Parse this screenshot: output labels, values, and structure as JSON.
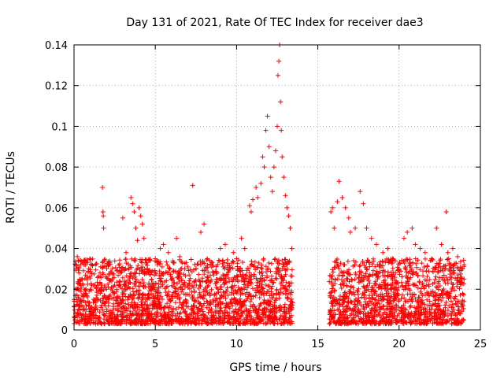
{
  "chart_data": {
    "type": "scatter",
    "title": "Day 131 of 2021, Rate Of TEC Index for receiver dae3",
    "xlabel": "GPS time / hours",
    "ylabel": "ROTI / TECUs",
    "xlim": [
      0,
      25
    ],
    "ylim": [
      0,
      0.14
    ],
    "x_ticks": [
      0,
      5,
      10,
      15,
      20,
      25
    ],
    "y_ticks": [
      0,
      0.02,
      0.04,
      0.06,
      0.08,
      0.1,
      0.12,
      0.14
    ],
    "x_tick_labels": [
      "0",
      "5",
      "10",
      "15",
      "20",
      "25"
    ],
    "y_tick_labels": [
      "0",
      "0.02",
      "0.04",
      "0.06",
      "0.08",
      "0.1",
      "0.12",
      "0.14"
    ],
    "grid": true,
    "marker": "plus",
    "color": "#ff0000",
    "series": [
      {
        "values": [
          [
            0.0,
            0.015
          ],
          [
            0.1,
            0.02
          ],
          [
            0.15,
            0.032
          ],
          [
            0.2,
            0.036
          ],
          [
            0.3,
            0.012
          ],
          [
            0.5,
            0.025
          ],
          [
            0.7,
            0.018
          ],
          [
            0.9,
            0.03
          ],
          [
            1.0,
            0.01
          ],
          [
            1.2,
            0.022
          ],
          [
            1.5,
            0.015
          ],
          [
            1.6,
            0.028
          ],
          [
            1.75,
            0.07
          ],
          [
            1.78,
            0.058
          ],
          [
            1.8,
            0.056
          ],
          [
            1.82,
            0.05
          ],
          [
            2.0,
            0.02
          ],
          [
            2.2,
            0.033
          ],
          [
            2.5,
            0.018
          ],
          [
            2.8,
            0.024
          ],
          [
            3.0,
            0.055
          ],
          [
            3.2,
            0.038
          ],
          [
            3.5,
            0.065
          ],
          [
            3.6,
            0.062
          ],
          [
            3.7,
            0.058
          ],
          [
            3.8,
            0.05
          ],
          [
            3.9,
            0.044
          ],
          [
            4.0,
            0.06
          ],
          [
            4.1,
            0.056
          ],
          [
            4.2,
            0.052
          ],
          [
            4.3,
            0.045
          ],
          [
            4.5,
            0.03
          ],
          [
            4.8,
            0.02
          ],
          [
            5.0,
            0.035
          ],
          [
            5.3,
            0.04
          ],
          [
            5.5,
            0.042
          ],
          [
            5.8,
            0.038
          ],
          [
            6.0,
            0.025
          ],
          [
            6.3,
            0.045
          ],
          [
            6.5,
            0.036
          ],
          [
            6.8,
            0.03
          ],
          [
            7.0,
            0.022
          ],
          [
            7.3,
            0.071
          ],
          [
            7.5,
            0.03
          ],
          [
            7.8,
            0.048
          ],
          [
            8.0,
            0.052
          ],
          [
            8.2,
            0.035
          ],
          [
            8.5,
            0.033
          ],
          [
            8.8,
            0.028
          ],
          [
            9.0,
            0.04
          ],
          [
            9.3,
            0.042
          ],
          [
            9.5,
            0.03
          ],
          [
            9.8,
            0.038
          ],
          [
            10.0,
            0.035
          ],
          [
            10.3,
            0.045
          ],
          [
            10.5,
            0.04
          ],
          [
            10.8,
            0.061
          ],
          [
            10.9,
            0.058
          ],
          [
            11.0,
            0.064
          ],
          [
            11.2,
            0.07
          ],
          [
            11.3,
            0.065
          ],
          [
            11.5,
            0.072
          ],
          [
            11.6,
            0.085
          ],
          [
            11.7,
            0.08
          ],
          [
            11.8,
            0.098
          ],
          [
            11.9,
            0.105
          ],
          [
            12.0,
            0.09
          ],
          [
            12.1,
            0.075
          ],
          [
            12.2,
            0.068
          ],
          [
            12.3,
            0.08
          ],
          [
            12.4,
            0.088
          ],
          [
            12.5,
            0.1
          ],
          [
            12.55,
            0.125
          ],
          [
            12.6,
            0.132
          ],
          [
            12.65,
            0.14
          ],
          [
            12.7,
            0.112
          ],
          [
            12.75,
            0.098
          ],
          [
            12.8,
            0.085
          ],
          [
            12.9,
            0.075
          ],
          [
            13.0,
            0.066
          ],
          [
            13.1,
            0.06
          ],
          [
            13.2,
            0.056
          ],
          [
            13.3,
            0.05
          ],
          [
            13.4,
            0.04
          ],
          [
            15.8,
            0.058
          ],
          [
            15.9,
            0.06
          ],
          [
            16.0,
            0.05
          ],
          [
            16.2,
            0.063
          ],
          [
            16.3,
            0.073
          ],
          [
            16.5,
            0.065
          ],
          [
            16.7,
            0.06
          ],
          [
            16.9,
            0.055
          ],
          [
            17.0,
            0.048
          ],
          [
            17.3,
            0.05
          ],
          [
            17.6,
            0.068
          ],
          [
            17.8,
            0.062
          ],
          [
            18.0,
            0.05
          ],
          [
            18.3,
            0.045
          ],
          [
            18.6,
            0.042
          ],
          [
            19.0,
            0.038
          ],
          [
            19.3,
            0.04
          ],
          [
            19.6,
            0.035
          ],
          [
            20.0,
            0.03
          ],
          [
            20.3,
            0.045
          ],
          [
            20.5,
            0.048
          ],
          [
            20.8,
            0.05
          ],
          [
            21.0,
            0.042
          ],
          [
            21.3,
            0.04
          ],
          [
            21.6,
            0.038
          ],
          [
            22.0,
            0.035
          ],
          [
            22.3,
            0.05
          ],
          [
            22.6,
            0.042
          ],
          [
            22.9,
            0.058
          ],
          [
            23.0,
            0.038
          ],
          [
            23.3,
            0.04
          ],
          [
            23.6,
            0.036
          ],
          [
            23.9,
            0.03
          ],
          [
            24.0,
            0.025
          ]
        ]
      }
    ],
    "density_bands": [
      {
        "x_start": 0.0,
        "x_end": 13.45,
        "y_min": 0.003,
        "y_max": 0.035
      },
      {
        "x_start": 15.7,
        "x_end": 24.0,
        "y_min": 0.003,
        "y_max": 0.035
      }
    ]
  }
}
